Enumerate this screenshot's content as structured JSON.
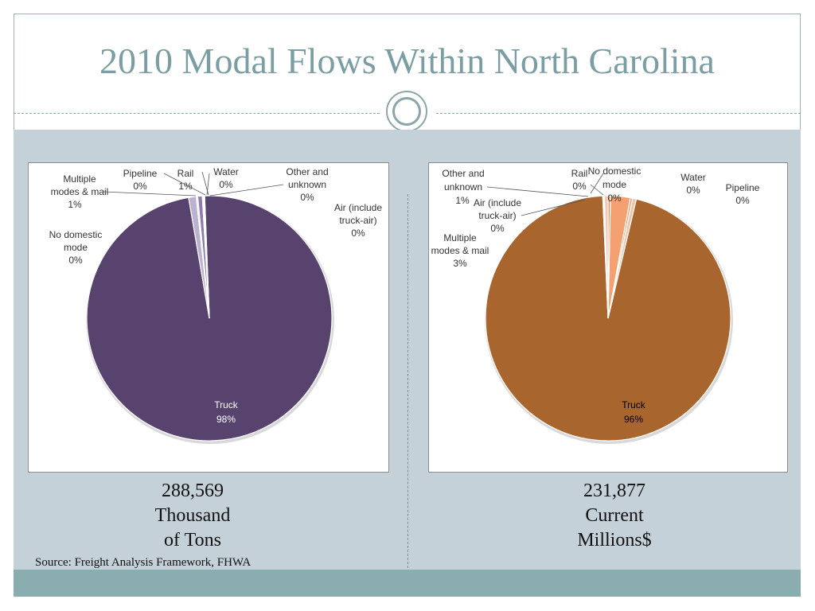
{
  "slide": {
    "title": "2010 Modal Flows Within North Carolina",
    "source": "Source: Freight Analysis Framework, FHWA",
    "colors": {
      "title": "#7a9ea3",
      "band": "#c5d1d9",
      "bottom_band": "#8aaeb0",
      "ornament": "#8aa6ab"
    }
  },
  "captions": {
    "left": {
      "line1": "288,569",
      "line2": "Thousand",
      "line3": "of Tons"
    },
    "right": {
      "line1": "231,877",
      "line2": "Current",
      "line3": "Millions$"
    }
  },
  "chart_data": [
    {
      "type": "pie",
      "title": "",
      "legend": "none",
      "slices": [
        {
          "label": "Truck",
          "percent_label": "98%",
          "value": 97.9,
          "color": "#57436e"
        },
        {
          "label": "Multiple modes & mail",
          "percent_label": "1%",
          "value": 1.0,
          "color": "#bbb1d0"
        },
        {
          "label": "Pipeline",
          "percent_label": "0%",
          "value": 0.2,
          "color": "#e6e1ef"
        },
        {
          "label": "Rail",
          "percent_label": "1%",
          "value": 0.6,
          "color": "#8e7aae"
        },
        {
          "label": "Water",
          "percent_label": "0%",
          "value": 0.1,
          "color": "#c7bfda"
        },
        {
          "label": "Other and unknown",
          "percent_label": "0%",
          "value": 0.1,
          "color": "#a89bc4"
        },
        {
          "label": "Air (include truck-air)",
          "percent_label": "0%",
          "value": 0.05,
          "color": "#7b6a9c"
        },
        {
          "label": "No domestic mode",
          "percent_label": "0%",
          "value": 0.05,
          "color": "#d7d0e5"
        }
      ]
    },
    {
      "type": "pie",
      "title": "",
      "legend": "none",
      "slices": [
        {
          "label": "Truck",
          "percent_label": "96%",
          "value": 95.6,
          "color": "#a8652e"
        },
        {
          "label": "Other and unknown",
          "percent_label": "1%",
          "value": 0.5,
          "color": "#f0c4a6"
        },
        {
          "label": "Air (include truck-air)",
          "percent_label": "0%",
          "value": 0.3,
          "color": "#e8a27a"
        },
        {
          "label": "Multiple modes & mail",
          "percent_label": "3%",
          "value": 2.6,
          "color": "#f4a070"
        },
        {
          "label": "Rail",
          "percent_label": "0%",
          "value": 0.3,
          "color": "#d98c5a"
        },
        {
          "label": "No domestic mode",
          "percent_label": "0%",
          "value": 0.5,
          "color": "#f6c8b0"
        },
        {
          "label": "Water",
          "percent_label": "0%",
          "value": 0.1,
          "color": "#c77a44"
        },
        {
          "label": "Pipeline",
          "percent_label": "0%",
          "value": 0.1,
          "color": "#b86f3b"
        }
      ]
    }
  ]
}
